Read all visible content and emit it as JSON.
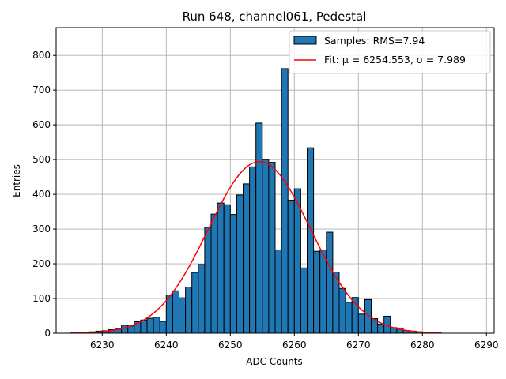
{
  "chart_data": {
    "type": "bar",
    "title": "Run 648, channel061, Pedestal",
    "xlabel": "ADC Counts",
    "ylabel": "Entries",
    "xlim": [
      6222.8,
      6291.2
    ],
    "ylim": [
      0,
      880
    ],
    "xticks": [
      6230,
      6240,
      6250,
      6260,
      6270,
      6280,
      6290
    ],
    "yticks": [
      0,
      100,
      200,
      300,
      400,
      500,
      600,
      700,
      800
    ],
    "grid": true,
    "legend_position": "top-right",
    "colors": {
      "bars": "#1f77b4",
      "fit": "#ff0000",
      "edge": "#000000"
    },
    "histogram": {
      "name": "Samples: RMS=7.94",
      "bin_edges_start": 6225,
      "bin_width": 1,
      "bins": [
        [
          6225,
          1
        ],
        [
          6226,
          2
        ],
        [
          6227,
          3
        ],
        [
          6228,
          4
        ],
        [
          6229,
          6
        ],
        [
          6230,
          7
        ],
        [
          6231,
          10
        ],
        [
          6232,
          14
        ],
        [
          6233,
          23
        ],
        [
          6234,
          21
        ],
        [
          6235,
          33
        ],
        [
          6236,
          38
        ],
        [
          6237,
          43
        ],
        [
          6238,
          46
        ],
        [
          6239,
          34
        ],
        [
          6240,
          110
        ],
        [
          6241,
          122
        ],
        [
          6242,
          102
        ],
        [
          6243,
          133
        ],
        [
          6244,
          175
        ],
        [
          6245,
          198
        ],
        [
          6246,
          305
        ],
        [
          6247,
          343
        ],
        [
          6248,
          375
        ],
        [
          6249,
          370
        ],
        [
          6250,
          342
        ],
        [
          6251,
          398
        ],
        [
          6252,
          430
        ],
        [
          6253,
          479
        ],
        [
          6254,
          605
        ],
        [
          6255,
          500
        ],
        [
          6256,
          492
        ],
        [
          6257,
          240
        ],
        [
          6258,
          762
        ],
        [
          6259,
          383
        ],
        [
          6260,
          416
        ],
        [
          6261,
          188
        ],
        [
          6262,
          534
        ],
        [
          6263,
          236
        ],
        [
          6264,
          240
        ],
        [
          6265,
          291
        ],
        [
          6266,
          176
        ],
        [
          6267,
          129
        ],
        [
          6268,
          89
        ],
        [
          6269,
          103
        ],
        [
          6270,
          55
        ],
        [
          6271,
          97
        ],
        [
          6272,
          42
        ],
        [
          6273,
          26
        ],
        [
          6274,
          49
        ],
        [
          6275,
          16
        ],
        [
          6276,
          15
        ],
        [
          6277,
          8
        ],
        [
          6278,
          6
        ],
        [
          6279,
          4
        ],
        [
          6280,
          2
        ],
        [
          6281,
          1
        ]
      ]
    },
    "fit": {
      "name": "Fit: μ = 6254.553, σ = 7.989",
      "mu": 6254.553,
      "sigma": 7.989,
      "amplitude": 494,
      "x_range": [
        6225,
        6283
      ]
    }
  }
}
